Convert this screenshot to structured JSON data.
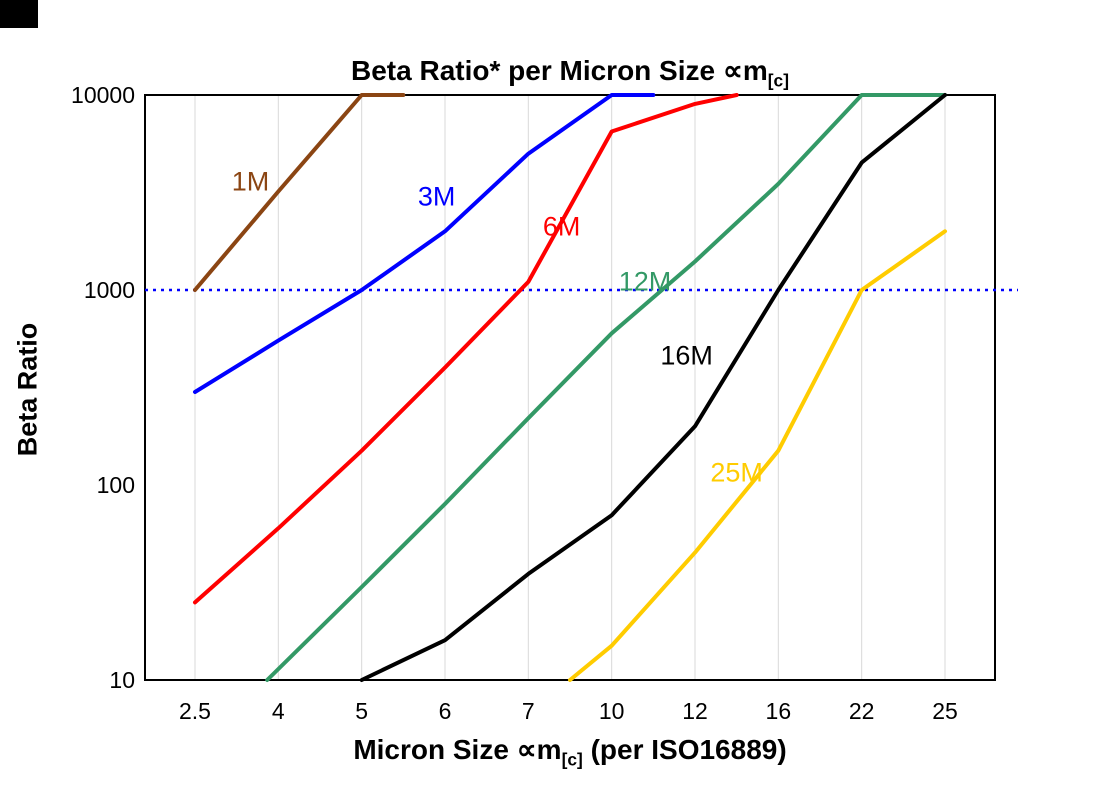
{
  "chart_data": {
    "type": "line",
    "title": "Beta Ratio* per Micron Size ∝m[c]",
    "title_parts": {
      "text": "Beta Ratio* per Micron Size ∝m",
      "sub": "[c]"
    },
    "xlabel_parts": {
      "pre": "Micron Size ∝m",
      "sub": "[c]",
      "post": " (per ISO16889)"
    },
    "ylabel": "Beta Ratio",
    "y_scale": "log",
    "ylim": [
      10,
      10000
    ],
    "y_ticks": [
      10000,
      1000,
      100,
      10
    ],
    "y_tick_labels": [
      "10000",
      "1000",
      "100",
      "10"
    ],
    "x_categories": [
      2.5,
      4,
      5,
      6,
      7,
      10,
      12,
      16,
      22,
      25
    ],
    "x_tick_labels": [
      "2.5",
      "4",
      "5",
      "6",
      "7",
      "10",
      "12",
      "16",
      "22",
      "25"
    ],
    "grid": {
      "vertical": true,
      "horizontal": false
    },
    "colors": {
      "grid": "#d9d9d9",
      "axis": "#000000",
      "background": "#ffffff"
    },
    "reference_line": {
      "y": 1000,
      "style": "dotted",
      "color": "#0000ff"
    },
    "series": [
      {
        "name": "1M",
        "color": "#8B4513",
        "label_at": [
          3.5,
          3600
        ],
        "points": [
          [
            2.5,
            1000
          ],
          [
            4,
            3200
          ],
          [
            5,
            10000
          ],
          [
            5.5,
            10000
          ]
        ]
      },
      {
        "name": "3M",
        "color": "#0000FF",
        "label_at": [
          5.9,
          3000
        ],
        "points": [
          [
            2.5,
            300
          ],
          [
            4,
            550
          ],
          [
            5,
            1000
          ],
          [
            6,
            2000
          ],
          [
            7,
            5000
          ],
          [
            10,
            10000
          ],
          [
            11,
            10000
          ]
        ]
      },
      {
        "name": "6M",
        "color": "#FF0000",
        "label_at": [
          8.2,
          2100
        ],
        "points": [
          [
            2.5,
            25
          ],
          [
            4,
            60
          ],
          [
            5,
            150
          ],
          [
            6,
            400
          ],
          [
            7,
            1100
          ],
          [
            10,
            6500
          ],
          [
            12,
            9000
          ],
          [
            14,
            10000
          ]
        ]
      },
      {
        "name": "12M",
        "color": "#339966",
        "label_at": [
          10.8,
          1100
        ],
        "points": [
          [
            3.8,
            10
          ],
          [
            5,
            30
          ],
          [
            6,
            80
          ],
          [
            7,
            220
          ],
          [
            10,
            600
          ],
          [
            12,
            1400
          ],
          [
            16,
            3500
          ],
          [
            22,
            10000
          ],
          [
            25,
            10000
          ]
        ]
      },
      {
        "name": "16M",
        "color": "#000000",
        "label_at": [
          11.8,
          460
        ],
        "points": [
          [
            5,
            10
          ],
          [
            6,
            16
          ],
          [
            7,
            35
          ],
          [
            10,
            70
          ],
          [
            12,
            200
          ],
          [
            16,
            1000
          ],
          [
            22,
            4500
          ],
          [
            25,
            10000
          ]
        ]
      },
      {
        "name": "25M",
        "color": "#FFCC00",
        "label_at": [
          14,
          115
        ],
        "points": [
          [
            8.5,
            10
          ],
          [
            10,
            15
          ],
          [
            12,
            45
          ],
          [
            16,
            150
          ],
          [
            22,
            1000
          ],
          [
            25,
            2000
          ]
        ]
      }
    ]
  }
}
